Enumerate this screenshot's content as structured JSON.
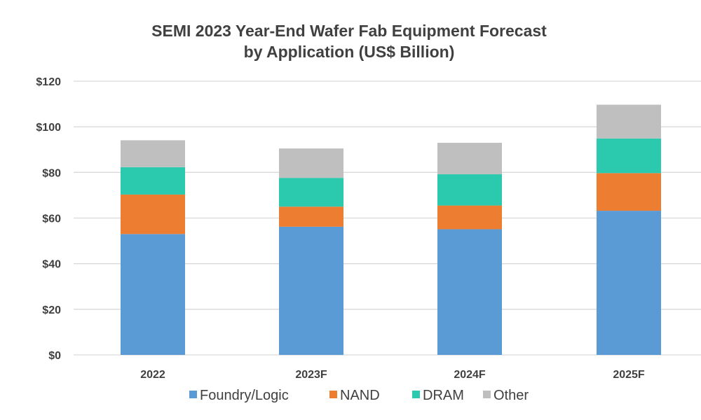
{
  "chart_data": {
    "type": "bar",
    "stacked": true,
    "title": "SEMI 2023 Year-End Wafer Fab Equipment Forecast",
    "subtitle": "by Application (US$ Billion)",
    "categories": [
      "2022",
      "2023F",
      "2024F",
      "2025F"
    ],
    "series": [
      {
        "name": "Foundry/Logic",
        "color": "#5B9BD5",
        "values": [
          53.0,
          56.2,
          55.1,
          63.2
        ]
      },
      {
        "name": "NAND",
        "color": "#ED7D31",
        "values": [
          17.3,
          8.8,
          10.4,
          16.5
        ]
      },
      {
        "name": "DRAM",
        "color": "#2BC9AE",
        "values": [
          12.0,
          12.6,
          13.7,
          15.2
        ]
      },
      {
        "name": "Other",
        "color": "#BFBFBF",
        "values": [
          11.8,
          12.9,
          13.8,
          14.8
        ]
      }
    ],
    "yticks": [
      "$0",
      "$20",
      "$40",
      "$60",
      "$80",
      "$100",
      "$120"
    ],
    "ylim": [
      0,
      120
    ],
    "grid": true,
    "legend_position": "bottom"
  }
}
